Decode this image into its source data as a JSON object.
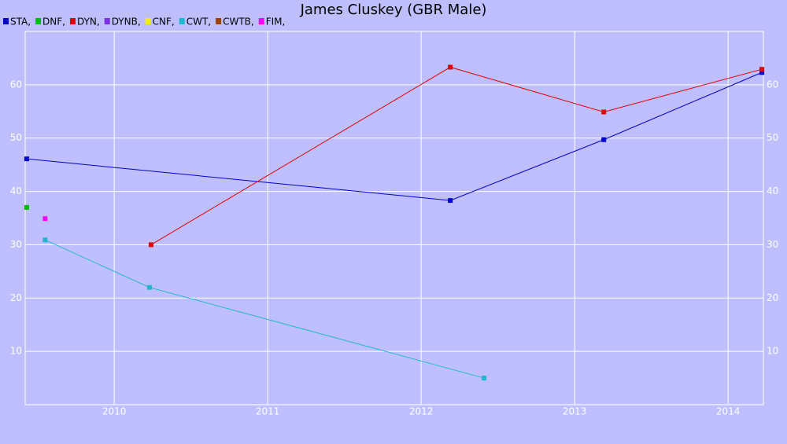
{
  "chart_data": {
    "type": "line",
    "title": "James Cluskey (GBR Male)",
    "xlim": [
      2009.42,
      2014.23
    ],
    "xticks": [
      2010,
      2011,
      2012,
      2013,
      2014
    ],
    "ylim": [
      0,
      70
    ],
    "yticks": [
      10,
      20,
      30,
      40,
      50,
      60
    ],
    "grid": true,
    "series": [
      {
        "name": "STA,",
        "color": "#0000cc",
        "x": [
          2009.43,
          2012.19,
          2013.19,
          2014.22
        ],
        "values": [
          46.1,
          38.3,
          49.7,
          62.3
        ]
      },
      {
        "name": "DNF,",
        "color": "#00bb00",
        "x": [
          2009.43
        ],
        "values": [
          37
        ]
      },
      {
        "name": "DYN,",
        "color": "#dd0000",
        "x": [
          2010.24,
          2012.19,
          2013.19,
          2014.22
        ],
        "values": [
          30,
          63.3,
          54.9,
          62.9
        ]
      },
      {
        "name": "DYNB,",
        "color": "#7a30e0",
        "x": [],
        "values": []
      },
      {
        "name": "CNF,",
        "color": "#f0f000",
        "x": [],
        "values": []
      },
      {
        "name": "CWT,",
        "color": "#20b8d0",
        "x": [
          2009.55,
          2010.23,
          2012.41
        ],
        "values": [
          30.9,
          22,
          5
        ]
      },
      {
        "name": "CWTB,",
        "color": "#a04000",
        "x": [],
        "values": []
      },
      {
        "name": "FIM,",
        "color": "#ff00ff",
        "x": [
          2009.55
        ],
        "values": [
          34.9
        ]
      }
    ]
  }
}
